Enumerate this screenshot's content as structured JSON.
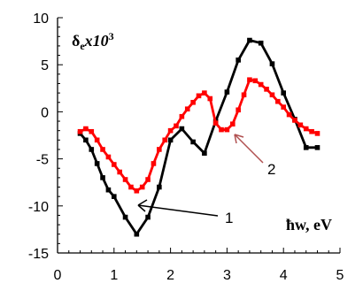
{
  "chart_data": {
    "type": "line",
    "title": "",
    "xlabel": "ħw, eV",
    "ylabel": "",
    "xlim": [
      0,
      5
    ],
    "ylim": [
      -15,
      10
    ],
    "xticks": [
      0,
      1,
      2,
      3,
      4,
      5
    ],
    "yticks": [
      10,
      5,
      0,
      -5,
      -10,
      -15
    ],
    "grid": false,
    "annotations": {
      "inner_label_main": "δ",
      "inner_label_sub": "e",
      "inner_label_tail": "x10",
      "inner_label_exp": "3",
      "curve1_label": "1",
      "curve2_label": "2"
    },
    "series": [
      {
        "name": "",
        "color": "#000000",
        "x": [
          0.4,
          0.5,
          0.6,
          0.7,
          0.8,
          0.9,
          1.0,
          1.2,
          1.4,
          1.6,
          1.8,
          2.0,
          2.2,
          2.4,
          2.6,
          2.8,
          3.0,
          3.2,
          3.4,
          3.6,
          3.8,
          4.0,
          4.2,
          4.4,
          4.6
        ],
        "y": [
          -2.3,
          -3.0,
          -4.0,
          -5.5,
          -7.0,
          -8.3,
          -9.0,
          -11.2,
          -13.0,
          -11.2,
          -8.0,
          -3.0,
          -1.8,
          -3.2,
          -4.4,
          -1.0,
          2.1,
          5.5,
          7.6,
          7.3,
          5.1,
          2.0,
          -0.8,
          -3.8,
          -3.8
        ]
      },
      {
        "name": "",
        "color": "#ff0000",
        "x": [
          0.4,
          0.5,
          0.6,
          0.7,
          0.8,
          0.9,
          1.0,
          1.1,
          1.2,
          1.3,
          1.4,
          1.5,
          1.6,
          1.7,
          1.8,
          1.9,
          2.0,
          2.1,
          2.2,
          2.3,
          2.4,
          2.5,
          2.6,
          2.7,
          2.8,
          2.9,
          3.0,
          3.1,
          3.2,
          3.3,
          3.4,
          3.5,
          3.6,
          3.7,
          3.8,
          3.9,
          4.0,
          4.1,
          4.2,
          4.3,
          4.4,
          4.5,
          4.6
        ],
        "y": [
          -2.1,
          -1.8,
          -2.1,
          -3.0,
          -4.0,
          -4.8,
          -5.6,
          -6.4,
          -7.2,
          -8.0,
          -8.4,
          -8.0,
          -7.2,
          -5.5,
          -4.0,
          -3.0,
          -2.0,
          -1.5,
          -0.5,
          0.3,
          1.0,
          1.7,
          2.0,
          1.4,
          -1.2,
          -1.9,
          -1.9,
          -1.3,
          0.2,
          1.8,
          3.4,
          3.3,
          2.9,
          2.4,
          1.8,
          1.1,
          0.5,
          -0.3,
          -0.9,
          -1.4,
          -1.8,
          -2.1,
          -2.3
        ]
      }
    ]
  }
}
